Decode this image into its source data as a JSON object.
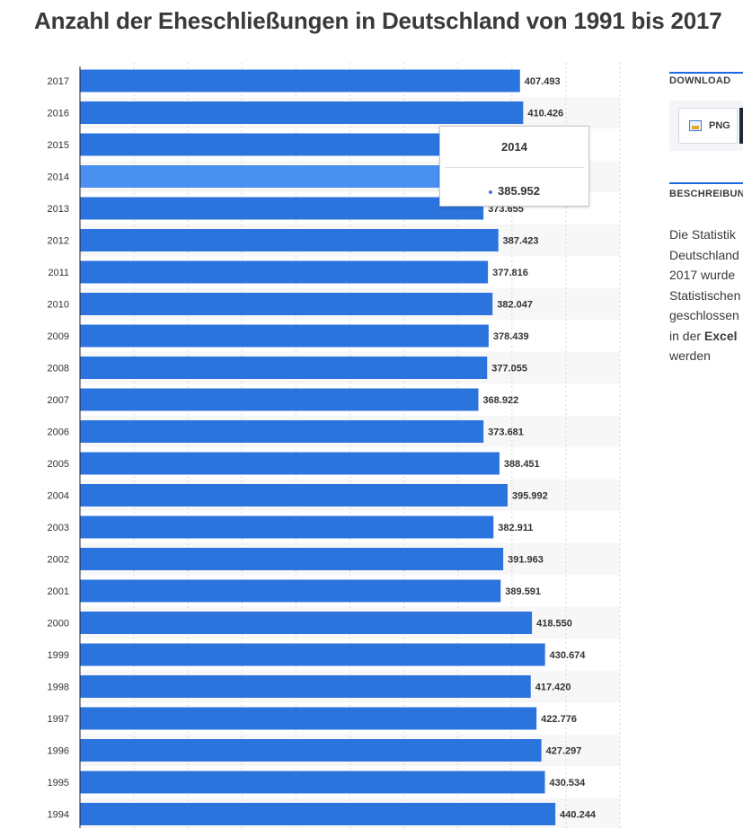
{
  "page": {
    "title": "Anzahl der Eheschließungen in Deutschland von 1991 bis 2017"
  },
  "tooltip": {
    "year": "2014",
    "value": "385.952"
  },
  "sidebar": {
    "download_heading": "DOWNLOAD",
    "png_label": "PNG",
    "description_heading": "BESCHREIBUNG",
    "description_lines": [
      "Die Statistik",
      "Deutschland",
      "2017 wurde",
      "Statistischen",
      "geschlossen",
      "in der",
      "Excel",
      "werden"
    ]
  },
  "chart_data": {
    "type": "bar",
    "orientation": "horizontal",
    "title": "Anzahl der Eheschließungen in Deutschland von 1991 bis 2017",
    "categories": [
      "2017",
      "2016",
      "2015",
      "2014",
      "2013",
      "2012",
      "2011",
      "2010",
      "2009",
      "2008",
      "2007",
      "2006",
      "2005",
      "2004",
      "2003",
      "2002",
      "2001",
      "2000",
      "1999",
      "1998",
      "1997",
      "1996",
      "1995",
      "1994"
    ],
    "values": [
      407493,
      410426,
      400115,
      385952,
      373655,
      387423,
      377816,
      382047,
      378439,
      377055,
      368922,
      373681,
      388451,
      395992,
      382911,
      391963,
      389591,
      418550,
      430674,
      417420,
      422776,
      427297,
      430534,
      440244
    ],
    "labels": [
      "407.493",
      "410.426",
      "",
      "",
      "373.655",
      "387.423",
      "377.816",
      "382.047",
      "378.439",
      "377.055",
      "368.922",
      "373.681",
      "388.451",
      "395.992",
      "382.911",
      "391.963",
      "389.591",
      "418.550",
      "430.674",
      "417.420",
      "422.776",
      "427.297",
      "430.534",
      "440.244"
    ],
    "highlighted": "2014",
    "xlim": [
      0,
      500000
    ],
    "grid": true,
    "colors": {
      "bar": "#2b73dd",
      "highlight": "#4a90f0",
      "label": "#333333",
      "axis": "#222222",
      "grid": "#d6d6d6",
      "stripe": "#f7f7f7"
    }
  }
}
